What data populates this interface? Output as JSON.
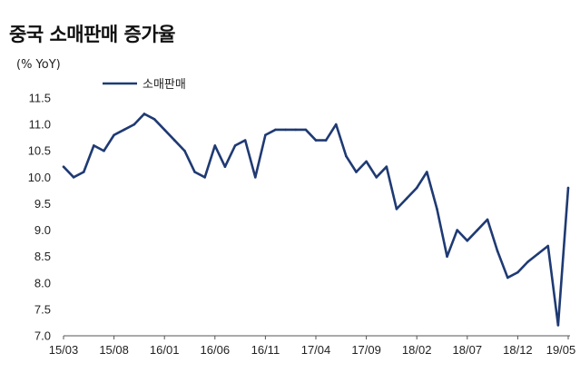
{
  "chart_data": {
    "type": "line",
    "title": "중국 소매판매 증가율",
    "unit_label": "(% YoY)",
    "ylim": [
      7.0,
      11.5
    ],
    "y_ticks": [
      "7.0",
      "7.5",
      "8.0",
      "8.5",
      "9.0",
      "9.5",
      "10.0",
      "10.5",
      "11.0",
      "11.5"
    ],
    "x_ticks": [
      "15/03",
      "15/08",
      "16/01",
      "16/06",
      "16/11",
      "17/04",
      "17/09",
      "18/02",
      "18/07",
      "18/12",
      "19/05"
    ],
    "legend": "top-left",
    "grid": false,
    "series": [
      {
        "name": "소매판매",
        "color": "#1f3a73",
        "x": [
          "15/03",
          "15/04",
          "15/05",
          "15/06",
          "15/07",
          "15/08",
          "15/09",
          "15/10",
          "15/11",
          "15/12",
          "16/01",
          "16/02",
          "16/03",
          "16/04",
          "16/05",
          "16/06",
          "16/07",
          "16/08",
          "16/09",
          "16/10",
          "16/11",
          "16/12",
          "17/01",
          "17/02",
          "17/03",
          "17/04",
          "17/05",
          "17/06",
          "17/07",
          "17/08",
          "17/09",
          "17/10",
          "17/11",
          "17/12",
          "18/01",
          "18/02",
          "18/03",
          "18/04",
          "18/05",
          "18/06",
          "18/07",
          "18/08",
          "18/09",
          "18/10",
          "18/11",
          "18/12",
          "19/01",
          "19/02",
          "19/03",
          "19/04",
          "19/05"
        ],
        "values": [
          10.2,
          10.0,
          10.1,
          10.6,
          10.5,
          10.8,
          10.9,
          11.0,
          11.2,
          11.1,
          10.9,
          10.7,
          10.5,
          10.1,
          10.0,
          10.6,
          10.2,
          10.6,
          10.7,
          10.0,
          10.8,
          10.9,
          10.9,
          10.9,
          10.9,
          10.7,
          10.7,
          11.0,
          10.4,
          10.1,
          10.3,
          10.0,
          10.2,
          9.4,
          9.6,
          9.8,
          10.1,
          9.4,
          8.5,
          9.0,
          8.8,
          9.0,
          9.2,
          8.6,
          8.1,
          8.2,
          8.4,
          8.55,
          8.7,
          7.2,
          9.8
        ]
      }
    ]
  }
}
